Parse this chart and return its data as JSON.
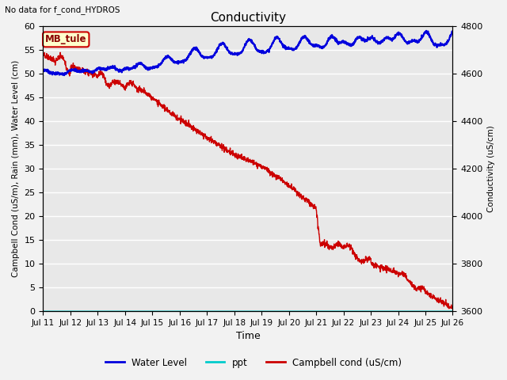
{
  "title": "Conductivity",
  "top_left_text": "No data for f_cond_HYDROS",
  "xlabel": "Time",
  "ylabel_left": "Campbell Cond (uS/m), Rain (mm), Water Level (cm)",
  "ylabel_right": "Conductivity (uS/cm)",
  "xlim": [
    0,
    15
  ],
  "ylim_left": [
    0,
    60
  ],
  "ylim_right": [
    3600,
    4800
  ],
  "x_ticks": [
    0,
    1,
    2,
    3,
    4,
    5,
    6,
    7,
    8,
    9,
    10,
    11,
    12,
    13,
    14,
    15
  ],
  "x_tick_labels": [
    "Jul 11",
    "Jul 12",
    "Jul 13",
    "Jul 14",
    "Jul 15",
    "Jul 16",
    "Jul 17",
    "Jul 18",
    "Jul 19",
    "Jul 20",
    "Jul 21",
    "Jul 22",
    "Jul 23",
    "Jul 24",
    "Jul 25",
    "Jul 26"
  ],
  "y_ticks_left": [
    0,
    5,
    10,
    15,
    20,
    25,
    30,
    35,
    40,
    45,
    50,
    55,
    60
  ],
  "y_ticks_right": [
    3600,
    3800,
    4000,
    4200,
    4400,
    4600,
    4800
  ],
  "plot_bg_color": "#e8e8e8",
  "grid_color": "#ffffff",
  "legend_label_box": "MB_tule",
  "legend_entries": [
    "Water Level",
    "ppt",
    "Campbell cond (uS/cm)"
  ],
  "wl_color": "#0000dd",
  "ppt_color": "#00cccc",
  "red_color": "#cc0000",
  "fig_bg": "#f2f2f2"
}
